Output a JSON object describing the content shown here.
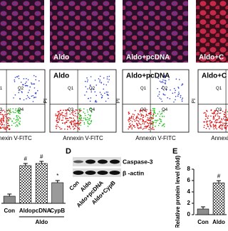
{
  "micrographs": {
    "labels": [
      "Aldo",
      "Aldo+pcDNA",
      "Aldo+C"
    ]
  },
  "flow": {
    "labels": [
      "Aldo",
      "Aldo+pcDNA",
      "Aldo+C"
    ],
    "quadrants": [
      "Q1",
      "Q2",
      "Q3",
      "Q4"
    ],
    "x_label": "Annexin V-FITC",
    "y_label": "PI"
  },
  "blot": {
    "panel_label": "D",
    "bands": [
      "Caspase-3",
      "β -actin"
    ],
    "lanes": [
      "Con",
      "Aldo",
      "Aldo+pcDNA",
      "Aldo+CypB"
    ]
  },
  "chart_data": [
    {
      "type": "bar",
      "categories": [
        "Con",
        "Aldo",
        "pcDNA",
        "CypB"
      ],
      "group_label": "Aldo",
      "values": [
        10,
        53,
        56,
        29
      ],
      "colors": [
        "#8c8c8c",
        "#d0d0d0",
        "#d0d0d0",
        "#9a9a9a"
      ],
      "markers": [
        null,
        "#",
        "#",
        "*"
      ],
      "ylim": [
        0,
        70
      ]
    },
    {
      "type": "bar",
      "panel_label": "E",
      "y_label": "Relative protein level (fold)",
      "categories": [
        "Con",
        "Aldo"
      ],
      "values": [
        1,
        5.6
      ],
      "colors": [
        "#8c8c8c",
        "#d0d0d0"
      ],
      "markers": [
        null,
        "#"
      ],
      "ylim": [
        0,
        8
      ],
      "yticks": [
        0,
        2,
        4,
        6,
        8
      ]
    }
  ]
}
